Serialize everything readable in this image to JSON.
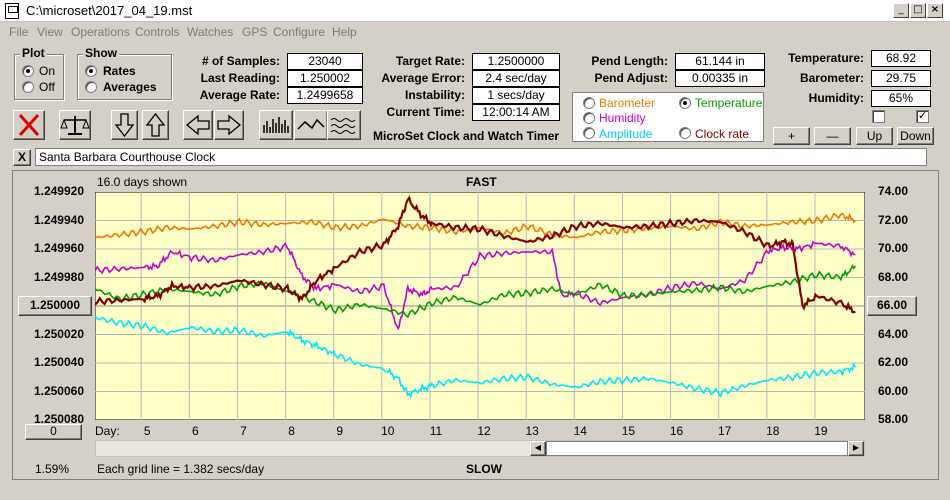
{
  "window": {
    "title": "C:\\microset\\2017_04_19.mst"
  },
  "menu": [
    "File",
    "View",
    "Operations",
    "Controls",
    "Watches",
    "GPS",
    "Configure",
    "Help"
  ],
  "plot_group": {
    "title": "Plot",
    "options": [
      {
        "label": "On",
        "selected": true
      },
      {
        "label": "Off",
        "selected": false
      }
    ]
  },
  "show_group": {
    "title": "Show",
    "options": [
      {
        "label": "Rates",
        "selected": true
      },
      {
        "label": "Averages",
        "selected": false
      }
    ]
  },
  "stats": {
    "samples_label": "# of Samples:",
    "samples": "23040",
    "last_label": "Last Reading:",
    "last": "1.250002",
    "avg_label": "Average Rate:",
    "avg": "1.2499658",
    "target_label": "Target Rate:",
    "target": "1.2500000",
    "avgerr_label": "Average Error:",
    "avgerr": "2.4 sec/day",
    "instab_label": "Instability:",
    "instab": "1 secs/day",
    "time_label": "Current Time:",
    "time": "12:00:14 AM",
    "pendlen_label": "Pend Length:",
    "pendlen": "61.144 in",
    "pendadj_label": "Pend Adjust:",
    "pendadj": "0.00335 in",
    "temp_label": "Temperature:",
    "temp": "68.92",
    "baro_label": "Barometer:",
    "baro": "29.75",
    "hum_label": "Humidity:",
    "hum": "65%"
  },
  "app_caption": "MicroSet Clock and Watch Timer",
  "sensor_options": [
    {
      "label": "Barometer",
      "color": "#f07800",
      "selected": false
    },
    {
      "label": "Temperature",
      "color": "#00a000",
      "selected": true
    },
    {
      "label": "Humidity",
      "color": "#c800c8",
      "selected": false
    },
    {
      "label": "Clock rate",
      "color": "#800000",
      "selected": false
    },
    {
      "label": "Amplitude",
      "color": "#00c8ff",
      "selected": false
    }
  ],
  "small_buttons": [
    "+",
    "—",
    "Up",
    "Down"
  ],
  "clock_name": "Santa Barbara Courthouse Clock",
  "close_x": "X",
  "plot": {
    "days_shown": "16.0 days shown",
    "top_label": "FAST",
    "bottom_label": "SLOW",
    "grid_note": "Each grid line = 1.382 secs/day",
    "percent": "1.59%",
    "day_label": "Day:",
    "left_button": "1.250000",
    "right_button": "66.00",
    "zero_button": "0"
  },
  "chart_data": {
    "type": "line",
    "left_axis": [
      "1.249920",
      "1.249940",
      "1.249960",
      "1.249980",
      "1.250000",
      "1.250020",
      "1.250040",
      "1.250060",
      "1.250080"
    ],
    "right_axis": [
      "74.00",
      "72.00",
      "70.00",
      "68.00",
      "66.00",
      "64.00",
      "62.00",
      "60.00",
      "58.00"
    ],
    "x_ticks": [
      "5",
      "6",
      "7",
      "8",
      "9",
      "10",
      "11",
      "12",
      "13",
      "14",
      "15",
      "16",
      "17",
      "18",
      "19"
    ],
    "xlim": [
      4.0,
      20.0
    ],
    "right_ylim": [
      58,
      74
    ],
    "grid": true,
    "series": [
      {
        "color": "#f07800",
        "x": [
          4.0,
          4.5,
          5.0,
          5.5,
          6.0,
          6.5,
          7.0,
          7.5,
          8.0,
          8.5,
          9.0,
          9.5,
          10.0,
          10.5,
          11.0,
          11.5,
          12.0,
          12.5,
          13.0,
          13.5,
          14.0,
          14.5,
          15.0,
          15.5,
          16.0,
          16.5,
          17.0,
          17.5,
          18.0,
          18.5,
          19.0,
          19.5,
          19.8
        ],
        "y": [
          70.8,
          71.0,
          71.2,
          71.5,
          71.4,
          71.6,
          71.9,
          71.7,
          71.8,
          71.9,
          71.5,
          71.6,
          72.1,
          71.6,
          71.5,
          71.2,
          71.5,
          71.1,
          71.6,
          71.0,
          70.8,
          71.2,
          71.3,
          71.5,
          71.6,
          71.4,
          71.9,
          71.6,
          71.7,
          71.9,
          72.0,
          72.4,
          72.0
        ]
      },
      {
        "color": "#c800c8",
        "x": [
          4.0,
          4.5,
          5.0,
          5.3,
          5.6,
          6.0,
          6.5,
          7.0,
          7.5,
          8.0,
          8.3,
          8.6,
          9.0,
          9.5,
          10.0,
          10.3,
          10.5,
          10.8,
          11.0,
          11.5,
          12.0,
          12.5,
          13.0,
          13.5,
          13.7,
          14.0,
          14.5,
          15.0,
          15.5,
          16.0,
          16.5,
          17.0,
          17.5,
          18.0,
          18.3,
          18.6,
          19.0,
          19.5,
          19.8
        ],
        "y": [
          68.5,
          68.6,
          68.7,
          68.8,
          69.8,
          69.4,
          69.2,
          69.6,
          69.8,
          70.2,
          68.1,
          67.2,
          67.5,
          67.0,
          67.4,
          64.3,
          67.2,
          66.8,
          67.2,
          67.3,
          69.5,
          69.7,
          69.8,
          69.8,
          66.7,
          66.9,
          66.2,
          66.6,
          66.8,
          67.3,
          67.6,
          67.2,
          67.8,
          69.9,
          70.1,
          70.0,
          70.4,
          70.2,
          69.6
        ]
      },
      {
        "color": "#00a000",
        "x": [
          4.0,
          4.5,
          5.0,
          5.5,
          6.0,
          6.5,
          7.0,
          7.5,
          8.0,
          8.5,
          9.0,
          9.5,
          10.0,
          10.5,
          11.0,
          11.5,
          12.0,
          12.5,
          13.0,
          13.5,
          14.0,
          14.5,
          15.0,
          15.5,
          16.0,
          16.5,
          17.0,
          17.5,
          18.0,
          18.5,
          19.0,
          19.5,
          19.8
        ],
        "y": [
          67.2,
          66.5,
          66.8,
          67.2,
          67.0,
          66.8,
          67.4,
          67.6,
          67.0,
          66.4,
          65.7,
          66.1,
          65.8,
          65.4,
          66.2,
          66.6,
          66.1,
          66.8,
          66.9,
          67.2,
          66.8,
          67.5,
          66.7,
          66.8,
          67.0,
          67.1,
          67.3,
          67.0,
          67.4,
          67.7,
          68.2,
          68.0,
          68.8
        ]
      },
      {
        "color": "#800000",
        "x": [
          4.0,
          4.5,
          5.0,
          5.3,
          5.6,
          6.0,
          6.5,
          7.0,
          7.5,
          8.0,
          8.3,
          8.6,
          9.0,
          9.5,
          10.0,
          10.3,
          10.5,
          10.8,
          11.0,
          11.5,
          12.0,
          12.5,
          13.0,
          13.5,
          14.0,
          14.5,
          15.0,
          15.5,
          16.0,
          16.5,
          17.0,
          17.5,
          18.0,
          18.3,
          18.5,
          18.7,
          19.0,
          19.5,
          19.8
        ],
        "y": [
          66.3,
          66.4,
          66.5,
          66.7,
          67.4,
          67.3,
          67.4,
          67.8,
          67.5,
          67.2,
          66.5,
          67.8,
          68.7,
          69.8,
          70.3,
          71.6,
          73.5,
          72.3,
          71.8,
          71.5,
          71.4,
          70.9,
          70.5,
          70.9,
          71.6,
          71.8,
          71.5,
          71.6,
          71.8,
          72.0,
          71.9,
          71.2,
          70.2,
          70.5,
          70.3,
          66.0,
          66.7,
          66.2,
          65.6
        ]
      },
      {
        "color": "#00e5ff",
        "x": [
          4.0,
          4.5,
          5.0,
          5.5,
          6.0,
          6.5,
          7.0,
          7.5,
          8.0,
          8.3,
          8.6,
          9.0,
          9.5,
          10.0,
          10.3,
          10.5,
          10.8,
          11.0,
          11.5,
          12.0,
          12.5,
          13.0,
          13.5,
          14.0,
          14.5,
          15.0,
          15.5,
          16.0,
          16.5,
          17.0,
          17.5,
          18.0,
          18.5,
          19.0,
          19.5,
          19.8
        ],
        "y": [
          65.2,
          64.8,
          64.6,
          64.1,
          64.5,
          64.2,
          64.3,
          63.9,
          64.2,
          63.6,
          63.2,
          62.6,
          61.9,
          61.6,
          60.9,
          59.8,
          60.2,
          60.4,
          60.8,
          60.6,
          60.9,
          61.0,
          60.5,
          60.3,
          60.7,
          60.8,
          60.9,
          60.6,
          60.2,
          59.9,
          60.4,
          60.8,
          61.0,
          61.3,
          61.4,
          61.7
        ]
      }
    ]
  }
}
